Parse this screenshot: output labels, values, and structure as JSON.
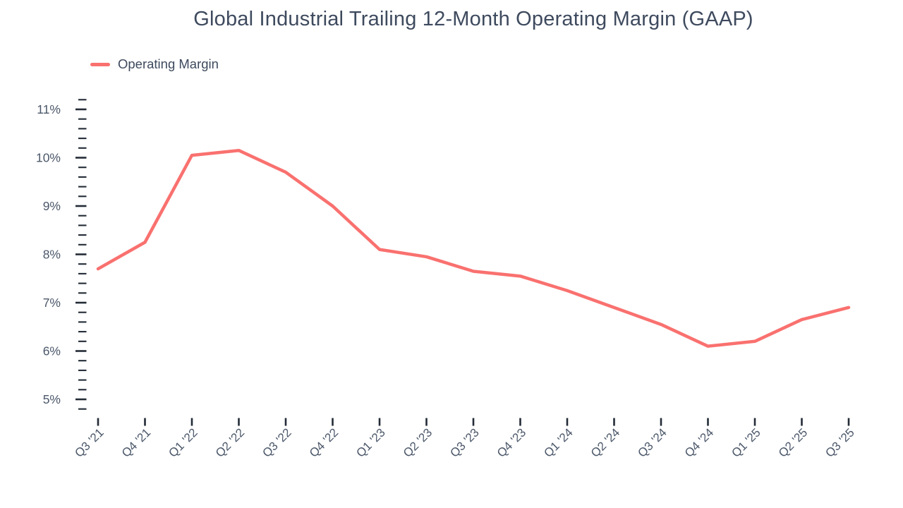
{
  "chart_data": {
    "type": "line",
    "title": "Global Industrial Trailing 12-Month Operating Margin (GAAP)",
    "xlabel": "",
    "ylabel": "",
    "grid": false,
    "legend_position": "top-left",
    "unit": "%",
    "categories": [
      "Q3 '21",
      "Q4 '21",
      "Q1 '22",
      "Q2 '22",
      "Q3 '22",
      "Q4 '22",
      "Q1 '23",
      "Q2 '23",
      "Q3 '23",
      "Q4 '23",
      "Q1 '24",
      "Q2 '24",
      "Q3 '24",
      "Q4 '24",
      "Q1 '25",
      "Q2 '25",
      "Q3 '25"
    ],
    "series": [
      {
        "name": "Operating Margin",
        "values": [
          7.7,
          8.25,
          10.05,
          10.15,
          9.7,
          9.0,
          8.1,
          7.95,
          7.65,
          7.55,
          7.25,
          6.9,
          6.55,
          6.1,
          6.2,
          6.65,
          6.9
        ]
      }
    ],
    "y_axis": {
      "tick_values": [
        5,
        6,
        7,
        8,
        9,
        10,
        11
      ],
      "tick_labels": [
        "5%",
        "6%",
        "7%",
        "8%",
        "9%",
        "10%",
        "11%"
      ],
      "minor_tick_step": 0.2,
      "range": [
        4.8,
        11.2
      ]
    }
  },
  "colors": {
    "line": "#f9716f",
    "title_text": "#3e4a5e",
    "axis_text": "#4c586a",
    "tick_mark": "#232b36",
    "background": "#ffffff"
  }
}
